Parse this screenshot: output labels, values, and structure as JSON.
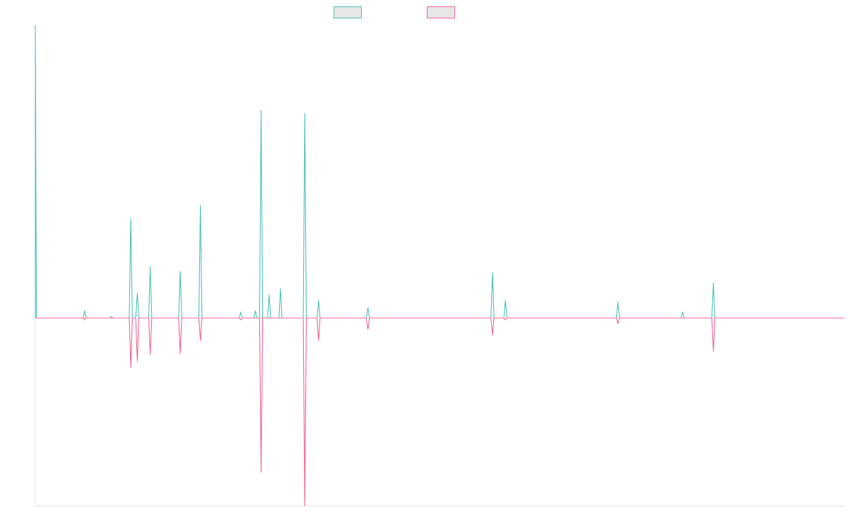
{
  "colors": {
    "series_1": "#4bbfbb",
    "series_2": "#f0648c",
    "axis": "#e3e3e3"
  },
  "chart_data": {
    "type": "line",
    "title": "",
    "xlabel": "",
    "ylabel": "",
    "grid": false,
    "legend_position": "top-center",
    "xlim": [
      0,
      1000
    ],
    "ylim": [
      -100,
      100
    ],
    "baseline": 0,
    "series": [
      {
        "color": "#4bbfbb",
        "peaks": [
          [
            0,
            100
          ],
          [
            61,
            2.5
          ],
          [
            94,
            0.5
          ],
          [
            118,
            34
          ],
          [
            126,
            8.5
          ],
          [
            142,
            17.5
          ],
          [
            179,
            16
          ],
          [
            204,
            38.5
          ],
          [
            254,
            2
          ],
          [
            272,
            2.5
          ],
          [
            279,
            71
          ],
          [
            289,
            8
          ],
          [
            303,
            10
          ],
          [
            333,
            70
          ],
          [
            350,
            6
          ],
          [
            411,
            3.5
          ],
          [
            565,
            15.5
          ],
          [
            581,
            6
          ],
          [
            720,
            5.5
          ],
          [
            800,
            2
          ],
          [
            838,
            12
          ]
        ]
      },
      {
        "color": "#f0648c",
        "peaks": [
          [
            61,
            -1
          ],
          [
            118,
            -26.5
          ],
          [
            126,
            -23
          ],
          [
            142,
            -19.5
          ],
          [
            179,
            -19
          ],
          [
            204,
            -12
          ],
          [
            254,
            -1
          ],
          [
            279,
            -82
          ],
          [
            333,
            -100
          ],
          [
            350,
            -12
          ],
          [
            411,
            -6
          ],
          [
            565,
            -9
          ],
          [
            581,
            -1
          ],
          [
            720,
            -3
          ],
          [
            838,
            -17.5
          ]
        ]
      }
    ]
  }
}
